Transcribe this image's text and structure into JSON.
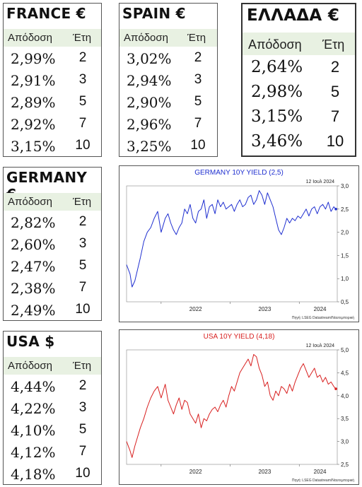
{
  "tables": {
    "france": {
      "title": "FRANCE €",
      "col_yield": "Απόδοση",
      "col_years": "Έτη",
      "rows": [
        {
          "yield": "2,99%",
          "years": "2"
        },
        {
          "yield": "2,91%",
          "years": "3"
        },
        {
          "yield": "2,89%",
          "years": "5"
        },
        {
          "yield": "2,92%",
          "years": "7"
        },
        {
          "yield": "3,15%",
          "years": "10"
        }
      ]
    },
    "spain": {
      "title": "SPAIN €",
      "col_yield": "Απόδοση",
      "col_years": "Έτη",
      "rows": [
        {
          "yield": "3,02%",
          "years": "2"
        },
        {
          "yield": "2,94%",
          "years": "3"
        },
        {
          "yield": "2,90%",
          "years": "5"
        },
        {
          "yield": "2,96%",
          "years": "7"
        },
        {
          "yield": "3,25%",
          "years": "10"
        }
      ]
    },
    "greece": {
      "title": "ΕΛΛΑΔΑ €",
      "col_yield": "Απόδοση",
      "col_years": "Έτη",
      "rows": [
        {
          "yield": "2,64%",
          "years": "2"
        },
        {
          "yield": "2,98%",
          "years": "5"
        },
        {
          "yield": "3,15%",
          "years": "7"
        },
        {
          "yield": "3,46%",
          "years": "10"
        }
      ]
    },
    "germany": {
      "title": "GERMANY €",
      "col_yield": "Απόδοση",
      "col_years": "Έτη",
      "rows": [
        {
          "yield": "2,82%",
          "years": "2"
        },
        {
          "yield": "2,60%",
          "years": "3"
        },
        {
          "yield": "2,47%",
          "years": "5"
        },
        {
          "yield": "2,38%",
          "years": "7"
        },
        {
          "yield": "2,49%",
          "years": "10"
        }
      ]
    },
    "usa": {
      "title": "USA $",
      "col_yield": "Απόδοση",
      "col_years": "Έτη",
      "rows": [
        {
          "yield": "4,44%",
          "years": "2"
        },
        {
          "yield": "4,22%",
          "years": "3"
        },
        {
          "yield": "4,10%",
          "years": "5"
        },
        {
          "yield": "4,12%",
          "years": "7"
        },
        {
          "yield": "4,18%",
          "years": "10"
        }
      ]
    }
  },
  "chart_data": [
    {
      "type": "line",
      "title": "GERMANY 10Y YIELD  (2,5)",
      "date_label": "12 Ιουλ 2024",
      "source": "Πηγή: LSEG Datastream/Ναυτεμπορική",
      "color": "#1f2fd0",
      "ylim": [
        0.5,
        3.0
      ],
      "yticks": [
        "3,0",
        "2,5",
        "2,0",
        "1,5",
        "1,0",
        "0,5"
      ],
      "xlim": [
        2021.5,
        2024.55
      ],
      "xticks": [
        "2022",
        "2023",
        "2024"
      ],
      "series": [
        {
          "x": [
            2021.5,
            2021.55,
            2021.58,
            2021.62,
            2021.66,
            2021.7,
            2021.75,
            2021.8,
            2021.85,
            2021.9,
            2021.95,
            2022.0,
            2022.03,
            2022.06,
            2022.1,
            2022.14,
            2022.18,
            2022.22,
            2022.26,
            2022.3,
            2022.34,
            2022.38,
            2022.42,
            2022.46,
            2022.5,
            2022.54,
            2022.58,
            2022.62,
            2022.66,
            2022.7,
            2022.74,
            2022.78,
            2022.82,
            2022.86,
            2022.9,
            2022.94,
            2022.98,
            2023.02,
            2023.06,
            2023.1,
            2023.14,
            2023.18,
            2023.22,
            2023.26,
            2023.3,
            2023.34,
            2023.38,
            2023.42,
            2023.46,
            2023.5,
            2023.54,
            2023.58,
            2023.62,
            2023.66,
            2023.7,
            2023.74,
            2023.78,
            2023.82,
            2023.86,
            2023.9,
            2023.94,
            2023.98,
            2024.02,
            2024.06,
            2024.1,
            2024.14,
            2024.18,
            2024.22,
            2024.26,
            2024.3,
            2024.34,
            2024.38,
            2024.42,
            2024.46,
            2024.5,
            2024.53
          ],
          "y": [
            1.3,
            1.1,
            0.82,
            0.95,
            1.2,
            1.45,
            1.8,
            2.0,
            2.1,
            2.3,
            2.45,
            2.0,
            2.15,
            2.3,
            2.4,
            2.2,
            2.05,
            1.95,
            2.1,
            2.2,
            2.5,
            2.4,
            2.6,
            2.3,
            2.2,
            2.45,
            2.5,
            2.7,
            2.3,
            2.55,
            2.6,
            2.4,
            2.7,
            2.55,
            2.65,
            2.5,
            2.55,
            2.6,
            2.45,
            2.6,
            2.7,
            2.55,
            2.6,
            2.75,
            2.8,
            2.6,
            2.7,
            2.9,
            2.8,
            2.6,
            2.85,
            2.7,
            2.55,
            2.3,
            2.05,
            1.95,
            2.1,
            2.3,
            2.2,
            2.3,
            2.25,
            2.35,
            2.3,
            2.4,
            2.5,
            2.35,
            2.5,
            2.55,
            2.4,
            2.55,
            2.6,
            2.5,
            2.65,
            2.45,
            2.55,
            2.5
          ]
        }
      ]
    },
    {
      "type": "line",
      "title": "USA 10Y YIELD  (4,18)",
      "date_label": "12 Ιουλ 2024",
      "source": "Πηγή: LSEG Datastream/Ναυτεμπορική",
      "color": "#d81f1f",
      "ylim": [
        2.5,
        5.0
      ],
      "yticks": [
        "5,0",
        "4,5",
        "4,0",
        "3,5",
        "3,0",
        "2,5"
      ],
      "xlim": [
        2021.5,
        2024.55
      ],
      "xticks": [
        "2022",
        "2023",
        "2024"
      ],
      "series": [
        {
          "x": [
            2021.5,
            2021.55,
            2021.58,
            2021.62,
            2021.66,
            2021.7,
            2021.75,
            2021.8,
            2021.85,
            2021.9,
            2021.95,
            2022.0,
            2022.03,
            2022.06,
            2022.1,
            2022.14,
            2022.18,
            2022.22,
            2022.26,
            2022.3,
            2022.34,
            2022.38,
            2022.42,
            2022.46,
            2022.5,
            2022.54,
            2022.58,
            2022.62,
            2022.66,
            2022.7,
            2022.74,
            2022.78,
            2022.82,
            2022.86,
            2022.9,
            2022.94,
            2022.98,
            2023.02,
            2023.06,
            2023.1,
            2023.14,
            2023.18,
            2023.22,
            2023.26,
            2023.3,
            2023.34,
            2023.38,
            2023.42,
            2023.46,
            2023.5,
            2023.54,
            2023.58,
            2023.62,
            2023.66,
            2023.7,
            2023.74,
            2023.78,
            2023.82,
            2023.86,
            2023.9,
            2023.94,
            2023.98,
            2024.02,
            2024.06,
            2024.1,
            2024.14,
            2024.18,
            2024.22,
            2024.26,
            2024.3,
            2024.34,
            2024.38,
            2024.42,
            2024.46,
            2024.5,
            2024.53
          ],
          "y": [
            3.0,
            2.8,
            2.65,
            2.9,
            3.1,
            3.3,
            3.5,
            3.75,
            3.95,
            4.1,
            4.2,
            3.95,
            4.1,
            4.25,
            3.9,
            3.75,
            3.6,
            3.8,
            3.95,
            3.7,
            3.9,
            3.85,
            3.6,
            3.5,
            3.4,
            3.6,
            3.3,
            3.5,
            3.45,
            3.6,
            3.7,
            3.75,
            3.65,
            3.8,
            3.9,
            3.75,
            4.0,
            4.2,
            4.1,
            4.3,
            4.5,
            4.6,
            4.7,
            4.8,
            4.65,
            4.9,
            4.85,
            4.6,
            4.45,
            4.2,
            4.3,
            4.0,
            3.9,
            4.1,
            4.0,
            4.2,
            4.15,
            4.05,
            4.25,
            4.1,
            4.3,
            4.45,
            4.6,
            4.7,
            4.55,
            4.4,
            4.5,
            4.6,
            4.4,
            4.45,
            4.3,
            4.4,
            4.25,
            4.3,
            4.2,
            4.15
          ]
        }
      ]
    }
  ]
}
